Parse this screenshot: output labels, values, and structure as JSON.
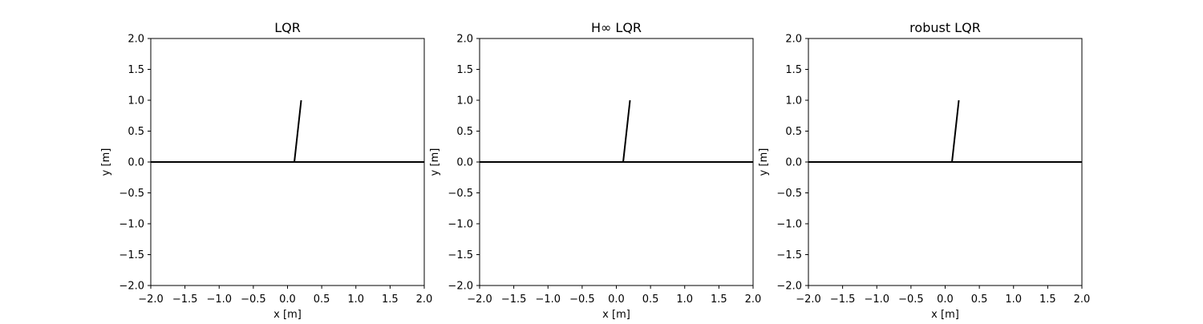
{
  "chart_data": [
    {
      "type": "line",
      "title": "LQR",
      "xlabel": "x [m]",
      "ylabel": "y [m]",
      "xlim": [
        -2.0,
        2.0
      ],
      "ylim": [
        -2.0,
        2.0
      ],
      "xticks": [
        "−2.0",
        "−1.5",
        "−1.0",
        "−0.5",
        "0.0",
        "0.5",
        "1.0",
        "1.5",
        "2.0"
      ],
      "yticks": [
        "−2.0",
        "−1.5",
        "−1.0",
        "−0.5",
        "0.0",
        "0.5",
        "1.0",
        "1.5",
        "2.0"
      ],
      "grid": false,
      "series": [
        {
          "x": [
            -2.0,
            2.0
          ],
          "y": [
            0.0,
            0.0
          ],
          "color": "#000000"
        },
        {
          "x": [
            0.1,
            0.2
          ],
          "y": [
            0.0,
            1.0
          ],
          "color": "#000000"
        }
      ]
    },
    {
      "type": "line",
      "title": "H∞ LQR",
      "xlabel": "x [m]",
      "ylabel": "y [m]",
      "xlim": [
        -2.0,
        2.0
      ],
      "ylim": [
        -2.0,
        2.0
      ],
      "xticks": [
        "−2.0",
        "−1.5",
        "−1.0",
        "−0.5",
        "0.0",
        "0.5",
        "1.0",
        "1.5",
        "2.0"
      ],
      "yticks": [
        "−2.0",
        "−1.5",
        "−1.0",
        "−0.5",
        "0.0",
        "0.5",
        "1.0",
        "1.5",
        "2.0"
      ],
      "grid": false,
      "series": [
        {
          "x": [
            -2.0,
            2.0
          ],
          "y": [
            0.0,
            0.0
          ],
          "color": "#000000"
        },
        {
          "x": [
            0.1,
            0.2
          ],
          "y": [
            0.0,
            1.0
          ],
          "color": "#000000"
        }
      ]
    },
    {
      "type": "line",
      "title": "robust LQR",
      "xlabel": "x [m]",
      "ylabel": "y [m]",
      "xlim": [
        -2.0,
        2.0
      ],
      "ylim": [
        -2.0,
        2.0
      ],
      "xticks": [
        "−2.0",
        "−1.5",
        "−1.0",
        "−0.5",
        "0.0",
        "0.5",
        "1.0",
        "1.5",
        "2.0"
      ],
      "yticks": [
        "−2.0",
        "−1.5",
        "−1.0",
        "−0.5",
        "0.0",
        "0.5",
        "1.0",
        "1.5",
        "2.0"
      ],
      "grid": false,
      "series": [
        {
          "x": [
            -2.0,
            2.0
          ],
          "y": [
            0.0,
            0.0
          ],
          "color": "#000000"
        },
        {
          "x": [
            0.1,
            0.2
          ],
          "y": [
            0.0,
            1.0
          ],
          "color": "#000000"
        }
      ]
    }
  ]
}
